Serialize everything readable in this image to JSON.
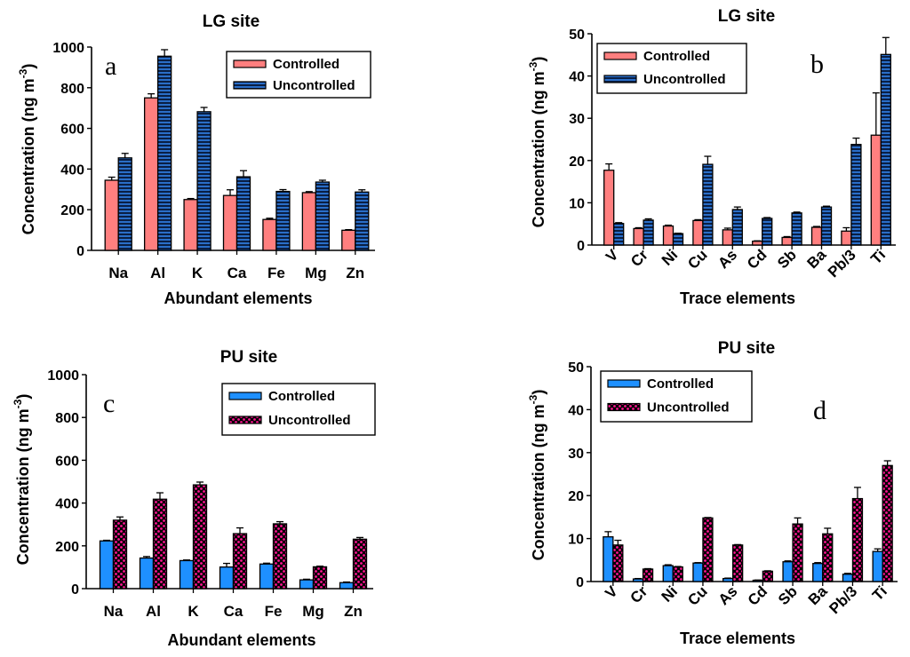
{
  "colors": {
    "lg_controlled": "#ff7f7f",
    "lg_uncontrolled_base": "#0a1f44",
    "lg_uncontrolled_stripe": "#2a6ec8",
    "pu_controlled": "#1e90ff",
    "pu_uncontrolled_base": "#000000",
    "pu_uncontrolled_dot": "#ff1493"
  },
  "chart_data": [
    {
      "id": "a",
      "type": "bar",
      "panel_letter": "a",
      "title": "LG site",
      "xlabel": "Abundant elements",
      "ylabel": "Concentration (ng m",
      "ylabel_sup": "-3",
      "ylabel_end": ")",
      "ylim": [
        0,
        1000
      ],
      "yticks": [
        0,
        200,
        400,
        600,
        800,
        1000
      ],
      "categories": [
        "Na",
        "Al",
        "K",
        "Ca",
        "Fe",
        "Mg",
        "Zn"
      ],
      "xtick_rotated": false,
      "legend_position": "top-right",
      "series": [
        {
          "name": "Controlled",
          "style": "lg_controlled",
          "values": [
            345,
            750,
            250,
            270,
            152,
            284,
            99
          ],
          "errors": [
            15,
            20,
            5,
            28,
            6,
            5,
            3
          ]
        },
        {
          "name": "Uncontrolled",
          "style": "lg_uncontrolled",
          "values": [
            455,
            955,
            682,
            362,
            290,
            336,
            287
          ],
          "errors": [
            22,
            32,
            21,
            30,
            9,
            9,
            11
          ]
        }
      ]
    },
    {
      "id": "b",
      "type": "bar",
      "panel_letter": "b",
      "title": "LG site",
      "xlabel": "Trace elements",
      "ylabel": "Concentration (ng m",
      "ylabel_sup": "-3",
      "ylabel_end": ")",
      "ylim": [
        0,
        50
      ],
      "yticks": [
        0,
        10,
        20,
        30,
        40,
        50
      ],
      "categories": [
        "V",
        "Cr",
        "Ni",
        "Cu",
        "As",
        "Cd",
        "Sb",
        "Ba",
        "Pb/3",
        "Ti"
      ],
      "xtick_rotated": true,
      "legend_position": "top-left",
      "series": [
        {
          "name": "Controlled",
          "style": "lg_controlled",
          "values": [
            17.7,
            3.9,
            4.5,
            5.8,
            3.6,
            0.9,
            1.8,
            4.2,
            3.3,
            26.0
          ],
          "errors": [
            1.5,
            0.2,
            0.2,
            0.2,
            0.4,
            0.1,
            0.2,
            0.2,
            0.8,
            10.0
          ]
        },
        {
          "name": "Uncontrolled",
          "style": "lg_uncontrolled",
          "values": [
            5.1,
            5.9,
            2.7,
            19.1,
            8.4,
            6.3,
            7.6,
            9.0,
            23.8,
            45.1
          ],
          "errors": [
            0.2,
            0.3,
            0.1,
            1.9,
            0.6,
            0.2,
            0.2,
            0.2,
            1.5,
            4.0
          ]
        }
      ]
    },
    {
      "id": "c",
      "type": "bar",
      "panel_letter": "c",
      "title": "PU site",
      "xlabel": "Abundant elements",
      "ylabel": "Concentration (ng m",
      "ylabel_sup": "-3",
      "ylabel_end": ")",
      "ylim": [
        0,
        1000
      ],
      "yticks": [
        0,
        200,
        400,
        600,
        800,
        1000
      ],
      "categories": [
        "Na",
        "Al",
        "K",
        "Ca",
        "Fe",
        "Mg",
        "Zn"
      ],
      "xtick_rotated": false,
      "legend_position": "top-right",
      "series": [
        {
          "name": "Controlled",
          "style": "pu_controlled",
          "values": [
            223,
            143,
            131,
            101,
            115,
            41,
            28
          ],
          "errors": [
            3,
            7,
            3,
            17,
            4,
            3,
            3
          ]
        },
        {
          "name": "Uncontrolled",
          "style": "pu_uncontrolled",
          "values": [
            320,
            418,
            485,
            257,
            303,
            102,
            231
          ],
          "errors": [
            15,
            30,
            13,
            27,
            10,
            3,
            8
          ]
        }
      ]
    },
    {
      "id": "d",
      "type": "bar",
      "panel_letter": "d",
      "title": "PU site",
      "xlabel": "Trace elements",
      "ylabel": "Concentration (ng m",
      "ylabel_sup": "-3",
      "ylabel_end": ")",
      "ylim": [
        0,
        50
      ],
      "yticks": [
        0,
        10,
        20,
        30,
        40,
        50
      ],
      "categories": [
        "V",
        "Cr",
        "Ni",
        "Cu",
        "As",
        "Cd",
        "Sb",
        "Ba",
        "Pb/3",
        "Ti"
      ],
      "xtick_rotated": true,
      "legend_position": "top-left",
      "series": [
        {
          "name": "Controlled",
          "style": "pu_controlled",
          "values": [
            10.4,
            0.6,
            3.7,
            4.3,
            0.7,
            0.3,
            4.6,
            4.2,
            1.7,
            7.0
          ],
          "errors": [
            1.2,
            0.1,
            0.2,
            0.1,
            0.1,
            0.05,
            0.2,
            0.2,
            0.2,
            0.6
          ]
        },
        {
          "name": "Uncontrolled",
          "style": "pu_uncontrolled",
          "values": [
            8.5,
            2.9,
            3.4,
            14.8,
            8.5,
            2.4,
            13.4,
            11.1,
            19.3,
            27.0
          ],
          "errors": [
            1.1,
            0.1,
            0.1,
            0.1,
            0.1,
            0.1,
            1.4,
            1.3,
            2.6,
            1.1
          ]
        }
      ]
    }
  ]
}
